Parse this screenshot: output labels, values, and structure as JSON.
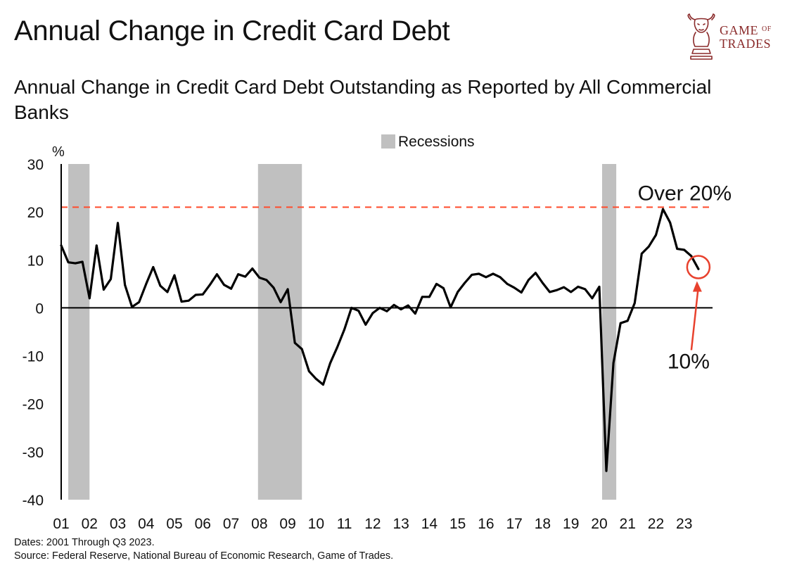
{
  "header": {
    "title": "Annual Change in Credit Card Debt",
    "subtitle": "Annual Change in Credit Card Debt Outstanding as Reported by All Commercial Banks"
  },
  "logo": {
    "line1_main": "GAME",
    "line1_small": "OF",
    "line2": "TRADES",
    "color": "#8a2a2a"
  },
  "footer": {
    "dates": "Dates: 2001 Through Q3 2023.",
    "source": "Source: Federal Reserve, National Bureau of Economic Research, Game of Trades."
  },
  "chart_data": {
    "type": "line",
    "title": "Annual Change in Credit Card Debt",
    "ylabel": "%",
    "xlabel": "",
    "ylim": [
      -40,
      30
    ],
    "xlim": [
      2001.0,
      2024.0
    ],
    "yticks": [
      30,
      20,
      10,
      0,
      -10,
      -20,
      -30,
      -40
    ],
    "ytick_labels": [
      "30",
      "20",
      "10",
      "0",
      "-10",
      "-20",
      "-30",
      "-40"
    ],
    "xticks": [
      2001,
      2002,
      2003,
      2004,
      2005,
      2006,
      2007,
      2008,
      2009,
      2010,
      2011,
      2012,
      2013,
      2014,
      2015,
      2016,
      2017,
      2018,
      2019,
      2020,
      2021,
      2022,
      2023
    ],
    "xtick_labels": [
      "01",
      "02",
      "03",
      "04",
      "05",
      "06",
      "07",
      "08",
      "09",
      "10",
      "11",
      "12",
      "13",
      "14",
      "15",
      "16",
      "17",
      "18",
      "19",
      "20",
      "21",
      "22",
      "23"
    ],
    "legend": {
      "label": "Recessions",
      "position": "top-center",
      "color": "#c0c0c0"
    },
    "recessions": [
      [
        2001.25,
        2002.0
      ],
      [
        2007.95,
        2009.5
      ],
      [
        2020.1,
        2020.6
      ]
    ],
    "reference_line": {
      "y": 21,
      "label": "Over 20%",
      "color": "#ff4a2b"
    },
    "annotation": {
      "text": "10%",
      "x": 2023.5,
      "y": 8.5,
      "color": "#e8412d"
    },
    "series": [
      {
        "name": "Annual change in credit card debt (%)",
        "color": "#000000",
        "x": [
          2001.0,
          2001.25,
          2001.5,
          2001.75,
          2002.0,
          2002.25,
          2002.5,
          2002.75,
          2003.0,
          2003.25,
          2003.5,
          2003.75,
          2004.0,
          2004.25,
          2004.5,
          2004.75,
          2005.0,
          2005.25,
          2005.5,
          2005.75,
          2006.0,
          2006.25,
          2006.5,
          2006.75,
          2007.0,
          2007.25,
          2007.5,
          2007.75,
          2008.0,
          2008.25,
          2008.5,
          2008.75,
          2009.0,
          2009.25,
          2009.5,
          2009.75,
          2010.0,
          2010.25,
          2010.5,
          2010.75,
          2011.0,
          2011.25,
          2011.5,
          2011.75,
          2012.0,
          2012.25,
          2012.5,
          2012.75,
          2013.0,
          2013.25,
          2013.5,
          2013.75,
          2014.0,
          2014.25,
          2014.5,
          2014.75,
          2015.0,
          2015.25,
          2015.5,
          2015.75,
          2016.0,
          2016.25,
          2016.5,
          2016.75,
          2017.0,
          2017.25,
          2017.5,
          2017.75,
          2018.0,
          2018.25,
          2018.5,
          2018.75,
          2019.0,
          2019.25,
          2019.5,
          2019.75,
          2020.0,
          2020.25,
          2020.5,
          2020.75,
          2021.0,
          2021.25,
          2021.5,
          2021.75,
          2022.0,
          2022.25,
          2022.5,
          2022.75,
          2023.0,
          2023.25,
          2023.5
        ],
        "values": [
          13,
          9.5,
          9.3,
          9.6,
          2,
          13,
          3.8,
          6,
          17.7,
          4.8,
          0.2,
          1.2,
          5,
          8.5,
          4.6,
          3.3,
          6.8,
          1.3,
          1.5,
          2.7,
          2.8,
          4.8,
          7,
          4.8,
          4,
          7,
          6.5,
          8.2,
          6.3,
          5.8,
          4.2,
          1.2,
          3.9,
          -7.3,
          -8.6,
          -13.2,
          -14.8,
          -16,
          -11.5,
          -8.2,
          -4.5,
          0,
          -0.6,
          -3.5,
          -1.1,
          0,
          -0.7,
          0.6,
          -0.3,
          0.5,
          -1.2,
          2.3,
          2.3,
          5,
          4.1,
          0.1,
          3.3,
          5.2,
          6.9,
          7.1,
          6.4,
          7.1,
          6.4,
          5,
          4.2,
          3.2,
          5.8,
          7.3,
          5.2,
          3.3,
          3.7,
          4.3,
          3.3,
          4.4,
          3.9,
          2,
          4.4,
          -34,
          -11.5,
          -3.2,
          -2.7,
          1,
          11.3,
          12.8,
          15.2,
          20.6,
          17.8,
          12.3,
          12.1,
          10.8,
          8.1
        ]
      }
    ]
  }
}
